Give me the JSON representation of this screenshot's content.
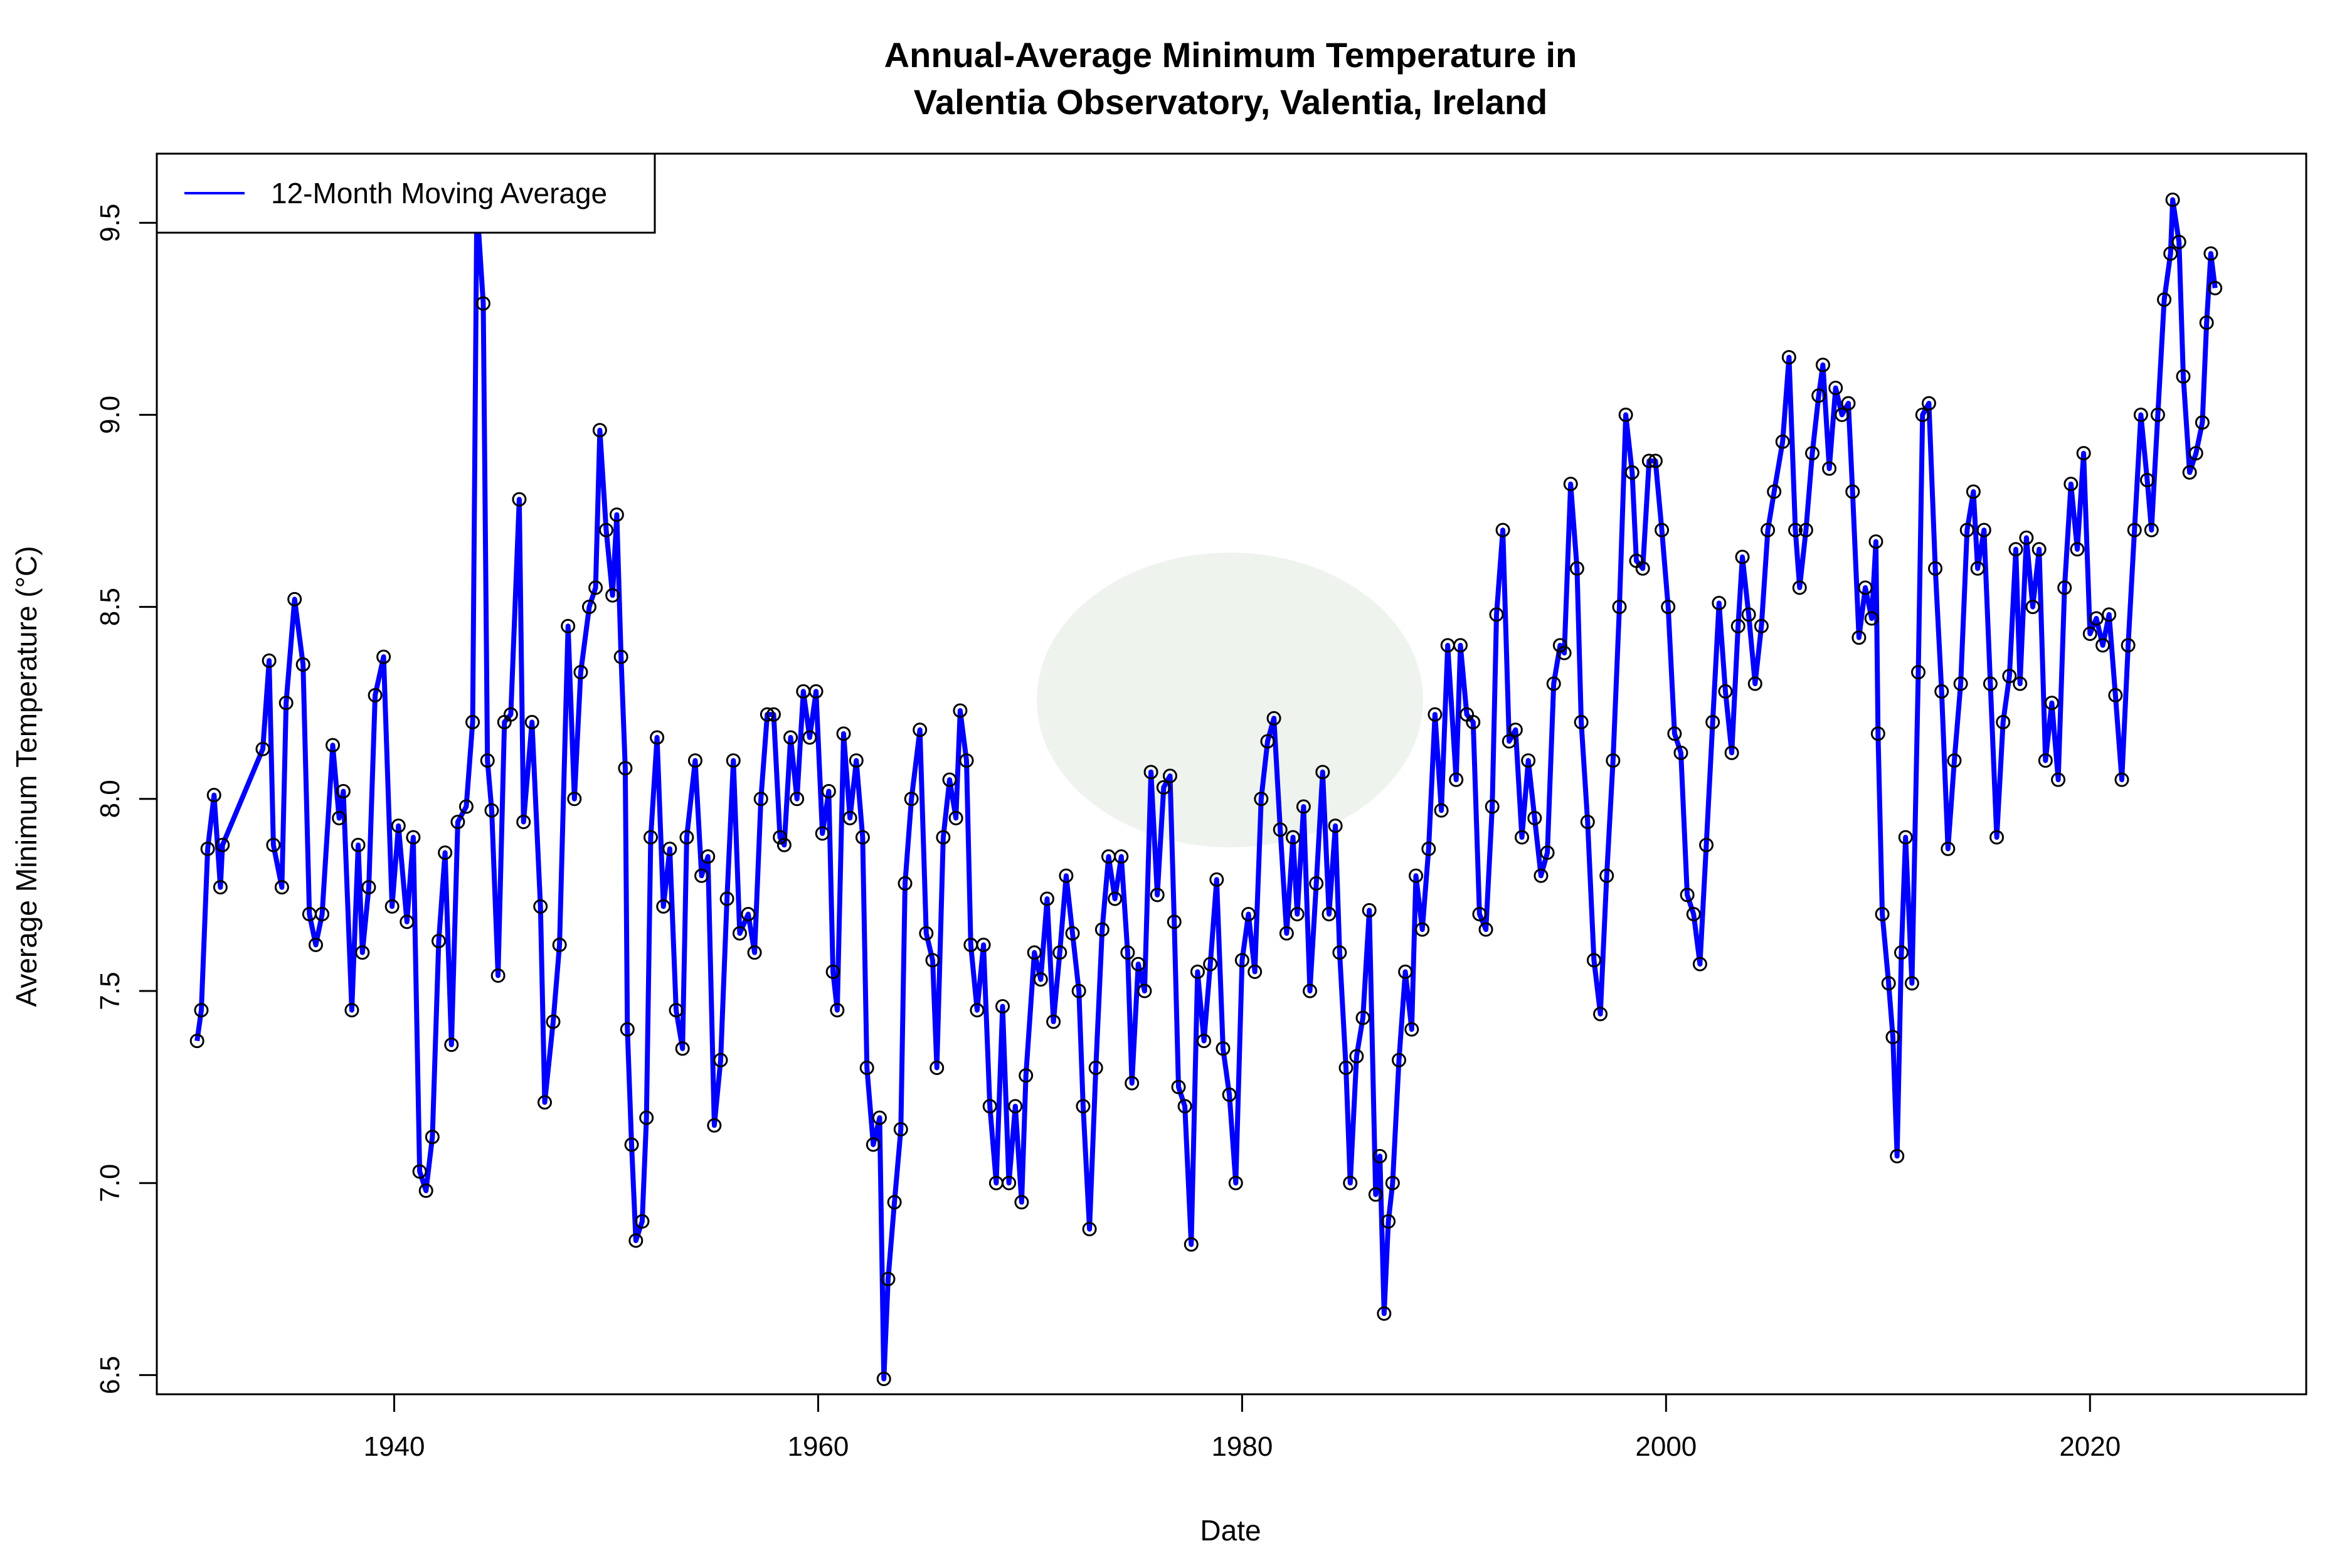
{
  "chart_data": {
    "type": "line",
    "title": "Annual-Average Minimum Temperature in\nValentia Observatory, Valentia, Ireland",
    "title_lines": [
      "Annual-Average Minimum Temperature in",
      "Valentia Observatory, Valentia, Ireland"
    ],
    "xlabel": "Date",
    "ylabel": "Average Minimum Temperature (°C)",
    "xlim": [
      1928.8,
      2030.2
    ],
    "ylim": [
      6.45,
      9.68
    ],
    "xticks": [
      1940,
      1960,
      1980,
      2000,
      2020
    ],
    "yticks": [
      "6.5",
      "7.0",
      "7.5",
      "8.0",
      "8.5",
      "9.0",
      "9.5"
    ],
    "grid": false,
    "legend": {
      "position": "top-left",
      "entries": [
        "12-Month Moving Average"
      ]
    },
    "colors": {
      "line": "#0000ff",
      "markers": "#000000"
    },
    "series": [
      {
        "name": "12-Month Moving Average",
        "x": [
          1930.7,
          1930.9,
          1931.2,
          1931.5,
          1931.8,
          1931.9,
          1933.8,
          1934.1,
          1934.3,
          1934.7,
          1934.9,
          1935.3,
          1935.7,
          1936.0,
          1936.3,
          1936.6,
          1937.1,
          1937.4,
          1937.6,
          1938.0,
          1938.3,
          1938.5,
          1938.8,
          1939.1,
          1939.5,
          1939.9,
          1940.2,
          1940.6,
          1940.9,
          1941.2,
          1941.5,
          1941.8,
          1942.1,
          1942.4,
          1942.7,
          1943.0,
          1943.4,
          1943.7,
          1943.9,
          1944.2,
          1944.4,
          1944.6,
          1944.9,
          1945.2,
          1945.5,
          1945.9,
          1946.1,
          1946.5,
          1946.9,
          1947.1,
          1947.5,
          1947.8,
          1948.2,
          1948.5,
          1948.8,
          1949.2,
          1949.5,
          1949.7,
          1950.0,
          1950.3,
          1950.5,
          1950.7,
          1950.9,
          1951.0,
          1951.2,
          1951.4,
          1951.7,
          1951.9,
          1952.1,
          1952.4,
          1952.7,
          1953.0,
          1953.3,
          1953.6,
          1953.8,
          1954.2,
          1954.5,
          1954.8,
          1955.1,
          1955.4,
          1955.7,
          1956.0,
          1956.3,
          1956.7,
          1957.0,
          1957.3,
          1957.6,
          1957.9,
          1958.2,
          1958.4,
          1958.7,
          1959.0,
          1959.3,
          1959.6,
          1959.9,
          1960.2,
          1960.5,
          1960.7,
          1960.9,
          1961.2,
          1961.5,
          1961.8,
          1962.1,
          1962.3,
          1962.6,
          1962.9,
          1963.1,
          1963.3,
          1963.6,
          1963.9,
          1964.1,
          1964.4,
          1964.8,
          1965.1,
          1965.4,
          1965.6,
          1965.9,
          1966.2,
          1966.5,
          1966.7,
          1967.0,
          1967.2,
          1967.5,
          1967.8,
          1968.1,
          1968.4,
          1968.7,
          1969.0,
          1969.3,
          1969.6,
          1969.8,
          1970.2,
          1970.5,
          1970.8,
          1971.1,
          1971.4,
          1971.7,
          1972.0,
          1972.3,
          1972.5,
          1972.8,
          1973.1,
          1973.4,
          1973.7,
          1974.0,
          1974.3,
          1974.6,
          1974.8,
          1975.1,
          1975.4,
          1975.7,
          1976.0,
          1976.3,
          1976.6,
          1976.8,
          1977.0,
          1977.3,
          1977.6,
          1977.9,
          1978.2,
          1978.5,
          1978.8,
          1979.1,
          1979.4,
          1979.7,
          1980.0,
          1980.3,
          1980.6,
          1980.9,
          1981.2,
          1981.5,
          1981.8,
          1982.1,
          1982.4,
          1982.6,
          1982.9,
          1983.2,
          1983.5,
          1983.8,
          1984.1,
          1984.4,
          1984.6,
          1984.9,
          1985.1,
          1985.4,
          1985.7,
          1986.0,
          1986.3,
          1986.5,
          1986.7,
          1986.9,
          1987.1,
          1987.4,
          1987.7,
          1988.0,
          1988.2,
          1988.5,
          1988.8,
          1989.1,
          1989.4,
          1989.7,
          1990.1,
          1990.3,
          1990.6,
          1990.9,
          1991.2,
          1991.5,
          1991.8,
          1992.0,
          1992.3,
          1992.6,
          1992.9,
          1993.2,
          1993.5,
          1993.8,
          1994.1,
          1994.4,
          1994.7,
          1995.0,
          1995.2,
          1995.5,
          1995.8,
          1996.0,
          1996.3,
          1996.6,
          1996.9,
          1997.2,
          1997.5,
          1997.8,
          1998.1,
          1998.4,
          1998.6,
          1998.9,
          1999.2,
          1999.5,
          1999.8,
          2000.1,
          2000.4,
          2000.7,
          2001.0,
          2001.3,
          2001.6,
          2001.9,
          2002.2,
          2002.5,
          2002.8,
          2003.1,
          2003.4,
          2003.6,
          2003.9,
          2004.2,
          2004.5,
          2004.8,
          2005.1,
          2005.5,
          2005.8,
          2006.1,
          2006.3,
          2006.6,
          2006.9,
          2007.2,
          2007.4,
          2007.7,
          2008.0,
          2008.3,
          2008.6,
          2008.8,
          2009.1,
          2009.4,
          2009.7,
          2009.9,
          2010.0,
          2010.2,
          2010.5,
          2010.7,
          2010.9,
          2011.1,
          2011.3,
          2011.6,
          2011.9,
          2012.1,
          2012.4,
          2012.7,
          2013.0,
          2013.3,
          2013.6,
          2013.9,
          2014.2,
          2014.5,
          2014.7,
          2015.0,
          2015.3,
          2015.6,
          2015.9,
          2016.2,
          2016.5,
          2016.7,
          2017.0,
          2017.3,
          2017.6,
          2017.9,
          2018.2,
          2018.5,
          2018.8,
          2019.1,
          2019.4,
          2019.7,
          2020.0,
          2020.3,
          2020.6,
          2020.9,
          2021.2,
          2021.5,
          2021.8,
          2022.1,
          2022.4,
          2022.7,
          2022.9,
          2023.2,
          2023.5,
          2023.8,
          2023.9,
          2024.2,
          2024.4,
          2024.7,
          2025.0,
          2025.3,
          2025.5,
          2025.7,
          2025.9
        ],
        "y": [
          7.37,
          7.45,
          7.87,
          8.01,
          7.77,
          7.88,
          8.13,
          8.36,
          7.88,
          7.77,
          8.25,
          8.52,
          8.35,
          7.7,
          7.62,
          7.7,
          8.14,
          7.95,
          8.02,
          7.45,
          7.88,
          7.6,
          7.77,
          8.27,
          8.37,
          7.72,
          7.93,
          7.68,
          7.9,
          7.03,
          6.98,
          7.12,
          7.63,
          7.86,
          7.36,
          7.94,
          7.98,
          8.2,
          9.55,
          9.29,
          8.1,
          7.97,
          7.54,
          8.2,
          8.22,
          8.78,
          7.94,
          8.2,
          7.72,
          7.21,
          7.42,
          7.62,
          8.45,
          8.0,
          8.33,
          8.5,
          8.55,
          8.96,
          8.7,
          8.53,
          8.74,
          8.37,
          8.08,
          7.4,
          7.1,
          6.85,
          6.9,
          7.17,
          7.9,
          8.16,
          7.72,
          7.87,
          7.45,
          7.35,
          7.9,
          8.1,
          7.8,
          7.85,
          7.15,
          7.32,
          7.74,
          8.1,
          7.65,
          7.7,
          7.6,
          8.0,
          8.22,
          8.22,
          7.9,
          7.88,
          8.16,
          8.0,
          8.28,
          8.16,
          8.28,
          7.91,
          8.02,
          7.55,
          7.45,
          8.17,
          7.95,
          8.1,
          7.9,
          7.3,
          7.1,
          7.17,
          6.49,
          6.75,
          6.95,
          7.14,
          7.78,
          8.0,
          8.18,
          7.65,
          7.58,
          7.3,
          7.9,
          8.05,
          7.95,
          8.23,
          8.1,
          7.62,
          7.45,
          7.62,
          7.2,
          7.0,
          7.46,
          7.0,
          7.2,
          6.95,
          7.28,
          7.6,
          7.53,
          7.74,
          7.42,
          7.6,
          7.8,
          7.65,
          7.5,
          7.2,
          6.88,
          7.3,
          7.66,
          7.85,
          7.74,
          7.85,
          7.6,
          7.26,
          7.57,
          7.5,
          8.07,
          7.75,
          8.03,
          8.06,
          7.68,
          7.25,
          7.2,
          6.84,
          7.55,
          7.37,
          7.57,
          7.79,
          7.35,
          7.23,
          7.0,
          7.58,
          7.7,
          7.55,
          8.0,
          8.15,
          8.21,
          7.92,
          7.65,
          7.9,
          7.7,
          7.98,
          7.5,
          7.78,
          8.07,
          7.7,
          7.93,
          7.6,
          7.3,
          7.0,
          7.33,
          7.43,
          7.71,
          6.97,
          7.07,
          6.66,
          6.9,
          7.0,
          7.32,
          7.55,
          7.4,
          7.8,
          7.66,
          7.87,
          8.22,
          7.97,
          8.4,
          8.05,
          8.4,
          8.22,
          8.2,
          7.7,
          7.66,
          7.98,
          8.48,
          8.7,
          8.15,
          8.18,
          7.9,
          8.1,
          7.95,
          7.8,
          7.86,
          8.3,
          8.4,
          8.38,
          8.82,
          8.6,
          8.2,
          7.94,
          7.58,
          7.44,
          7.8,
          8.1,
          8.5,
          9.0,
          8.85,
          8.62,
          8.6,
          8.88,
          8.88,
          8.7,
          8.5,
          8.17,
          8.12,
          7.75,
          7.7,
          7.57,
          7.88,
          8.2,
          8.51,
          8.28,
          8.12,
          8.45,
          8.63,
          8.48,
          8.3,
          8.45,
          8.7,
          8.8,
          8.93,
          9.15,
          8.7,
          8.55,
          8.7,
          8.9,
          9.05,
          9.13,
          8.86,
          9.07,
          9.0,
          9.03,
          8.8,
          8.42,
          8.55,
          8.47,
          8.67,
          8.17,
          7.7,
          7.52,
          7.38,
          7.07,
          7.6,
          7.9,
          7.52,
          8.33,
          9.0,
          9.03,
          8.6,
          8.28,
          7.87,
          8.1,
          8.3,
          8.7,
          8.8,
          8.6,
          8.7,
          8.3,
          7.9,
          8.2,
          8.32,
          8.65,
          8.3,
          8.68,
          8.5,
          8.65,
          8.1,
          8.25,
          8.05,
          8.55,
          8.82,
          8.65,
          8.9,
          8.43,
          8.47,
          8.4,
          8.48,
          8.27,
          8.05,
          8.4,
          8.7,
          9.0,
          8.83,
          8.7,
          9.0,
          9.3,
          9.42,
          9.56,
          9.45,
          9.1,
          8.85,
          8.9,
          8.98,
          9.24,
          9.42,
          9.33
        ]
      }
    ]
  }
}
